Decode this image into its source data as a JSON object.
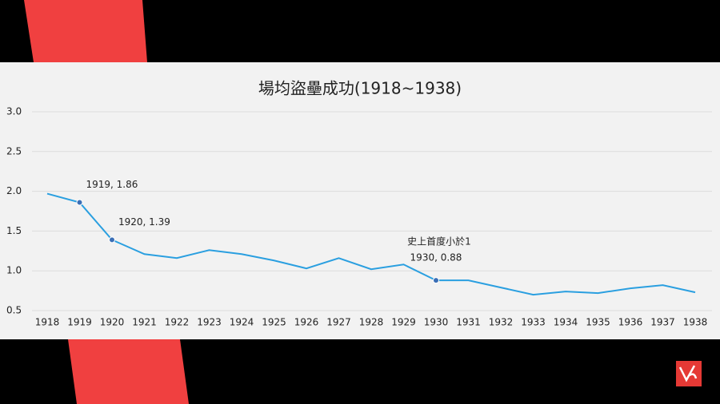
{
  "chart_data": {
    "type": "line",
    "title": "場均盜壘成功(1918~1938)",
    "categories": [
      "1918",
      "1919",
      "1920",
      "1921",
      "1922",
      "1923",
      "1924",
      "1925",
      "1926",
      "1927",
      "1928",
      "1929",
      "1930",
      "1931",
      "1932",
      "1933",
      "1934",
      "1935",
      "1936",
      "1937",
      "1938"
    ],
    "series": [
      {
        "name": null,
        "color": "#2a9fe0",
        "values": [
          1.97,
          1.86,
          1.39,
          1.21,
          1.16,
          1.26,
          1.21,
          1.13,
          1.03,
          1.16,
          1.02,
          1.08,
          0.88,
          0.88,
          0.79,
          0.7,
          0.74,
          0.72,
          0.78,
          0.82,
          0.73
        ],
        "value_labels": [
          null,
          "1919, 1.86",
          "1920, 1.39",
          null,
          null,
          null,
          null,
          null,
          null,
          null,
          null,
          null,
          "1930, 0.88",
          null,
          null,
          null,
          null,
          null,
          null,
          null,
          null
        ]
      }
    ],
    "annotation": "史上首度小於1",
    "ylim": [
      0.5,
      3.0
    ],
    "yticks": [
      0.5,
      {
        "value": 1,
        "label": "1.0"
      },
      1.5,
      {
        "value": 2,
        "label": "2.0"
      },
      2.5,
      {
        "value": 3,
        "label": "3.0"
      }
    ],
    "grid": true
  }
}
